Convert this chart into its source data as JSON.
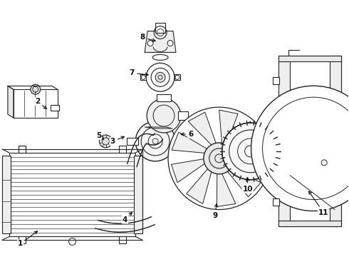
{
  "bg_color": "#ffffff",
  "line_color": "#222222",
  "label_color": "#111111",
  "label_data": [
    [
      "1",
      28,
      18,
      55,
      38
    ],
    [
      "2",
      52,
      218,
      68,
      205
    ],
    [
      "3",
      158,
      162,
      178,
      170
    ],
    [
      "4",
      175,
      52,
      188,
      65
    ],
    [
      "5",
      138,
      170,
      148,
      162
    ],
    [
      "6",
      268,
      172,
      250,
      172
    ],
    [
      "7",
      185,
      258,
      212,
      255
    ],
    [
      "8",
      200,
      308,
      222,
      302
    ],
    [
      "9",
      302,
      58,
      305,
      78
    ],
    [
      "10",
      348,
      95,
      348,
      115
    ],
    [
      "11",
      455,
      62,
      432,
      95
    ]
  ]
}
